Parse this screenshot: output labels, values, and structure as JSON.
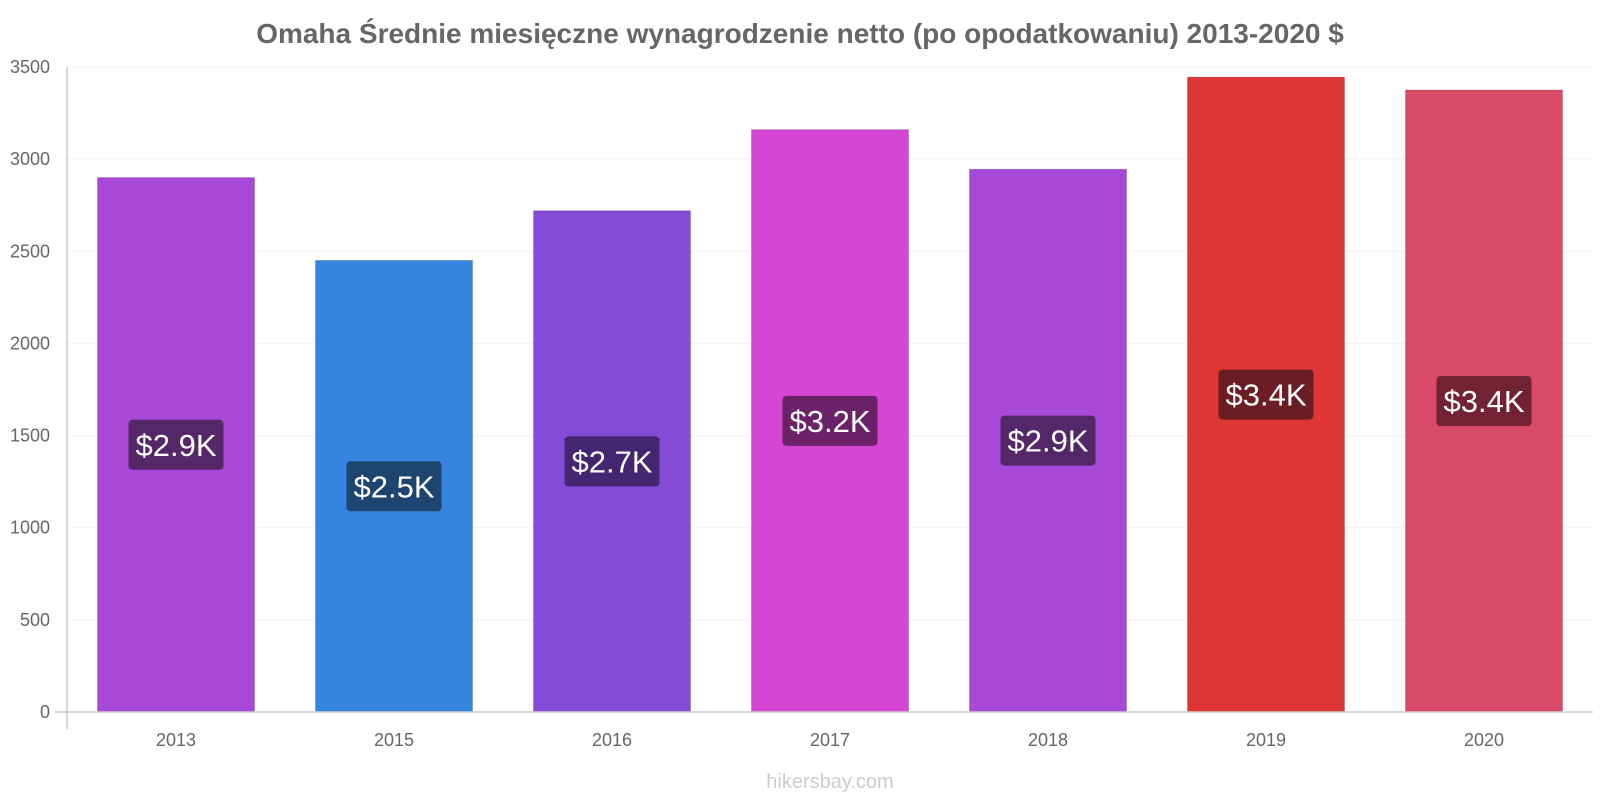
{
  "chart_data": {
    "type": "bar",
    "title": "Omaha Średnie miesięczne wynagrodzenie netto (po opodatkowaniu) 2013-2020 $",
    "xlabel": "",
    "ylabel": "",
    "ylim": [
      0,
      3500
    ],
    "yticks": [
      "0",
      "500",
      "1000",
      "1500",
      "2000",
      "2500",
      "3000",
      "3500"
    ],
    "grid": true,
    "legend": "none",
    "categories": [
      "2013",
      "2015",
      "2016",
      "2017",
      "2018",
      "2019",
      "2020"
    ],
    "values": [
      2900,
      2450,
      2720,
      3160,
      2945,
      3445,
      3375
    ],
    "labels": [
      "$2.9K",
      "$2.5K",
      "$2.7K",
      "$3.2K",
      "$2.9K",
      "$3.4K",
      "$3.4K"
    ],
    "colors": [
      "#a848d8",
      "#3584e0",
      "#844ad8",
      "#d546d4",
      "#a848d8",
      "#e03535",
      "#d84a66"
    ],
    "label_colors": [
      "#532768",
      "#1e4470",
      "#432570",
      "#6b2269",
      "#532768",
      "#6a1e23",
      "#722233"
    ]
  },
  "watermark": "hikersbay.com"
}
